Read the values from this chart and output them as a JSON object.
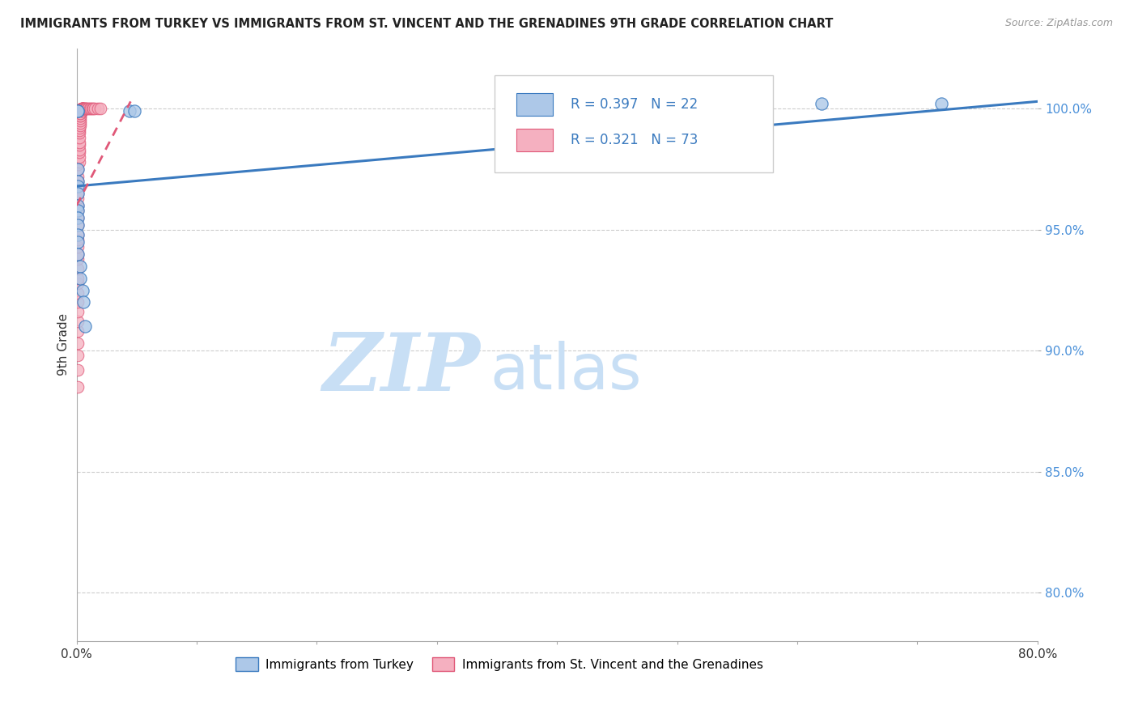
{
  "title": "IMMIGRANTS FROM TURKEY VS IMMIGRANTS FROM ST. VINCENT AND THE GRENADINES 9TH GRADE CORRELATION CHART",
  "source": "Source: ZipAtlas.com",
  "ylabel": "9th Grade",
  "xmin": 0.0,
  "xmax": 0.8,
  "ymin": 0.78,
  "ymax": 1.025,
  "xticks": [
    0.0,
    0.1,
    0.2,
    0.3,
    0.4,
    0.5,
    0.6,
    0.7,
    0.8
  ],
  "xtick_labels": [
    "0.0%",
    "",
    "",
    "",
    "",
    "",
    "",
    "",
    "80.0%"
  ],
  "yticks": [
    0.8,
    0.85,
    0.9,
    0.95,
    1.0
  ],
  "ytick_labels": [
    "80.0%",
    "85.0%",
    "90.0%",
    "95.0%",
    "100.0%"
  ],
  "legend_r_turkey": "R = 0.397",
  "legend_n_turkey": "N = 22",
  "legend_r_sv": "R = 0.321",
  "legend_n_sv": "N = 73",
  "legend_label_turkey": "Immigrants from Turkey",
  "legend_label_sv": "Immigrants from St. Vincent and the Grenadines",
  "color_turkey": "#adc8e8",
  "color_sv": "#f5b0c0",
  "color_line_turkey": "#3a7abf",
  "color_line_sv": "#e05878",
  "watermark_zip": "ZIP",
  "watermark_atlas": "atlas",
  "watermark_color_zip": "#c8dff5",
  "watermark_color_atlas": "#c8dff5",
  "turkey_x": [
    0.001,
    0.001,
    0.044,
    0.048,
    0.001,
    0.001,
    0.001,
    0.001,
    0.001,
    0.001,
    0.001,
    0.001,
    0.001,
    0.001,
    0.001,
    0.003,
    0.003,
    0.005,
    0.006,
    0.007,
    0.62,
    0.72
  ],
  "turkey_y": [
    0.999,
    0.999,
    0.999,
    0.999,
    0.975,
    0.97,
    0.968,
    0.965,
    0.96,
    0.958,
    0.955,
    0.952,
    0.948,
    0.945,
    0.94,
    0.935,
    0.93,
    0.925,
    0.92,
    0.91,
    1.002,
    1.002
  ],
  "sv_x": [
    0.001,
    0.001,
    0.001,
    0.001,
    0.001,
    0.001,
    0.001,
    0.001,
    0.001,
    0.001,
    0.001,
    0.001,
    0.001,
    0.001,
    0.001,
    0.001,
    0.001,
    0.001,
    0.001,
    0.001,
    0.001,
    0.001,
    0.001,
    0.001,
    0.001,
    0.001,
    0.001,
    0.001,
    0.002,
    0.002,
    0.002,
    0.002,
    0.002,
    0.002,
    0.002,
    0.002,
    0.002,
    0.002,
    0.003,
    0.003,
    0.003,
    0.003,
    0.003,
    0.003,
    0.003,
    0.003,
    0.003,
    0.004,
    0.004,
    0.004,
    0.004,
    0.004,
    0.004,
    0.005,
    0.005,
    0.005,
    0.005,
    0.006,
    0.006,
    0.006,
    0.007,
    0.007,
    0.008,
    0.008,
    0.009,
    0.01,
    0.011,
    0.012,
    0.013,
    0.014,
    0.015,
    0.018,
    0.02
  ],
  "sv_y": [
    0.885,
    0.892,
    0.898,
    0.903,
    0.908,
    0.912,
    0.916,
    0.92,
    0.924,
    0.928,
    0.93,
    0.934,
    0.938,
    0.94,
    0.943,
    0.946,
    0.948,
    0.952,
    0.955,
    0.958,
    0.96,
    0.963,
    0.965,
    0.968,
    0.97,
    0.972,
    0.975,
    0.977,
    0.978,
    0.98,
    0.982,
    0.983,
    0.985,
    0.986,
    0.988,
    0.99,
    0.991,
    0.992,
    0.993,
    0.994,
    0.995,
    0.996,
    0.997,
    0.997,
    0.998,
    0.998,
    0.999,
    0.999,
    0.999,
    1.0,
    1.0,
    1.0,
    1.0,
    1.0,
    1.0,
    1.0,
    1.0,
    1.0,
    1.0,
    1.0,
    1.0,
    1.0,
    1.0,
    1.0,
    1.0,
    1.0,
    1.0,
    1.0,
    1.0,
    1.0,
    1.0,
    1.0,
    1.0
  ],
  "trend_turkey_x0": 0.0,
  "trend_turkey_x1": 0.8,
  "trend_turkey_y0": 0.968,
  "trend_turkey_y1": 1.003,
  "trend_sv_x0": 0.0,
  "trend_sv_x1": 0.045,
  "trend_sv_y0": 0.96,
  "trend_sv_y1": 1.003
}
